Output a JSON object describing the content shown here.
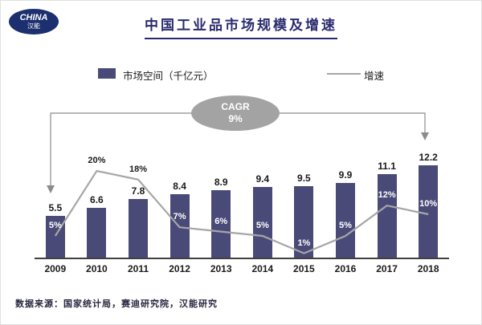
{
  "logo": {
    "text": "CHINA",
    "subtext": "汉能"
  },
  "header": {
    "title": "中国工业品市场规模及增速"
  },
  "legend": {
    "bar_label": "市场空间（千亿元）",
    "line_label": "增速"
  },
  "cagr": {
    "label": "CAGR",
    "value": "9%"
  },
  "footer": {
    "source": "数据来源：国家统计局，赛迪研究院，汉能研究"
  },
  "colors": {
    "bar": "#4a4a78",
    "line": "#a6a6a6",
    "title": "#2a2a6e",
    "text": "#1a1a1a",
    "cagr_fill": "#a3a3a3",
    "bracket": "#8c8c8c",
    "axis": "#404040",
    "footer_text": "#26263f"
  },
  "chart_data": {
    "type": "bar",
    "subtype": "bar+line combo",
    "title": "中国工业品市场规模及增速",
    "categories": [
      "2009",
      "2010",
      "2011",
      "2012",
      "2013",
      "2014",
      "2015",
      "2016",
      "2017",
      "2018"
    ],
    "series": [
      {
        "name": "市场空间（千亿元）",
        "type": "bar",
        "values": [
          5.5,
          6.6,
          7.8,
          8.4,
          8.9,
          9.4,
          9.5,
          9.9,
          11.1,
          12.2
        ]
      },
      {
        "name": "增速",
        "type": "line",
        "unit": "%",
        "values": [
          5,
          20,
          18,
          7,
          6,
          5,
          1,
          5,
          12,
          10
        ]
      }
    ],
    "annotations": {
      "cagr_label": "CAGR",
      "cagr_value": "9%",
      "cagr_span": [
        "2009",
        "2018"
      ]
    },
    "legend_position": "top",
    "grid": false,
    "source": "数据来源：国家统计局，赛迪研究院，汉能研究"
  }
}
